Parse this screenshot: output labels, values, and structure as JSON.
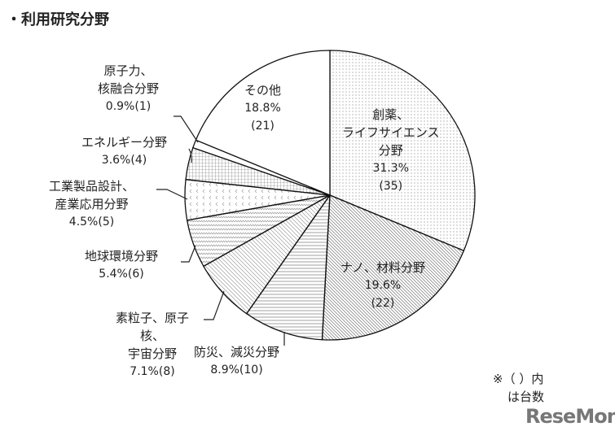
{
  "title": "・利用研究分野",
  "note": [
    "※（ ）内",
    "は台数"
  ],
  "watermark": "ReseMom",
  "chart_data": {
    "type": "pie",
    "title": "・利用研究分野",
    "start": "12 o'clock, clockwise",
    "slices": [
      {
        "label": "創薬、ライフサイエンス分野",
        "lines": [
          "創薬、",
          "ライフサイエンス",
          "分野"
        ],
        "percent": 31.3,
        "count": 35,
        "pct_text": "31.3%",
        "count_text": "(35)",
        "pattern": "dots"
      },
      {
        "label": "ナノ、材料分野",
        "lines": [
          "ナノ、材料分野"
        ],
        "percent": 19.6,
        "count": 22,
        "pct_text": "19.6%",
        "count_text": "(22)",
        "pattern": "diag-fine"
      },
      {
        "label": "防災、減災分野",
        "lines": [
          "防災、減災分野"
        ],
        "percent": 8.9,
        "count": 10,
        "pct_text": "8.9%(10)",
        "pattern": "horizontal"
      },
      {
        "label": "素粒子、原子核、宇宙分野",
        "lines": [
          "素粒子、原子",
          "核、",
          "宇宙分野"
        ],
        "percent": 7.1,
        "count": 8,
        "pct_text": "7.1%(8)",
        "pattern": "diag"
      },
      {
        "label": "地球環境分野",
        "lines": [
          "地球環境分野"
        ],
        "percent": 5.4,
        "count": 6,
        "pct_text": "5.4%(6)",
        "pattern": "wave"
      },
      {
        "label": "工業製品設計、産業応用分野",
        "lines": [
          "工業製品設計、",
          "産業応用分野"
        ],
        "percent": 4.5,
        "count": 5,
        "pct_text": "4.5%(5)",
        "pattern": "chevron"
      },
      {
        "label": "エネルギー分野",
        "lines": [
          "エネルギー分野"
        ],
        "percent": 3.6,
        "count": 4,
        "pct_text": "3.6%(4)",
        "pattern": "grid"
      },
      {
        "label": "原子力、核融合分野",
        "lines": [
          "原子力、",
          "核融合分野"
        ],
        "percent": 0.9,
        "count": 1,
        "pct_text": "0.9%(1)",
        "pattern": "none"
      },
      {
        "label": "その他",
        "lines": [
          "その他"
        ],
        "percent": 18.8,
        "count": 21,
        "pct_text": "18.8%",
        "count_text": "(21)",
        "pattern": "none"
      }
    ]
  }
}
